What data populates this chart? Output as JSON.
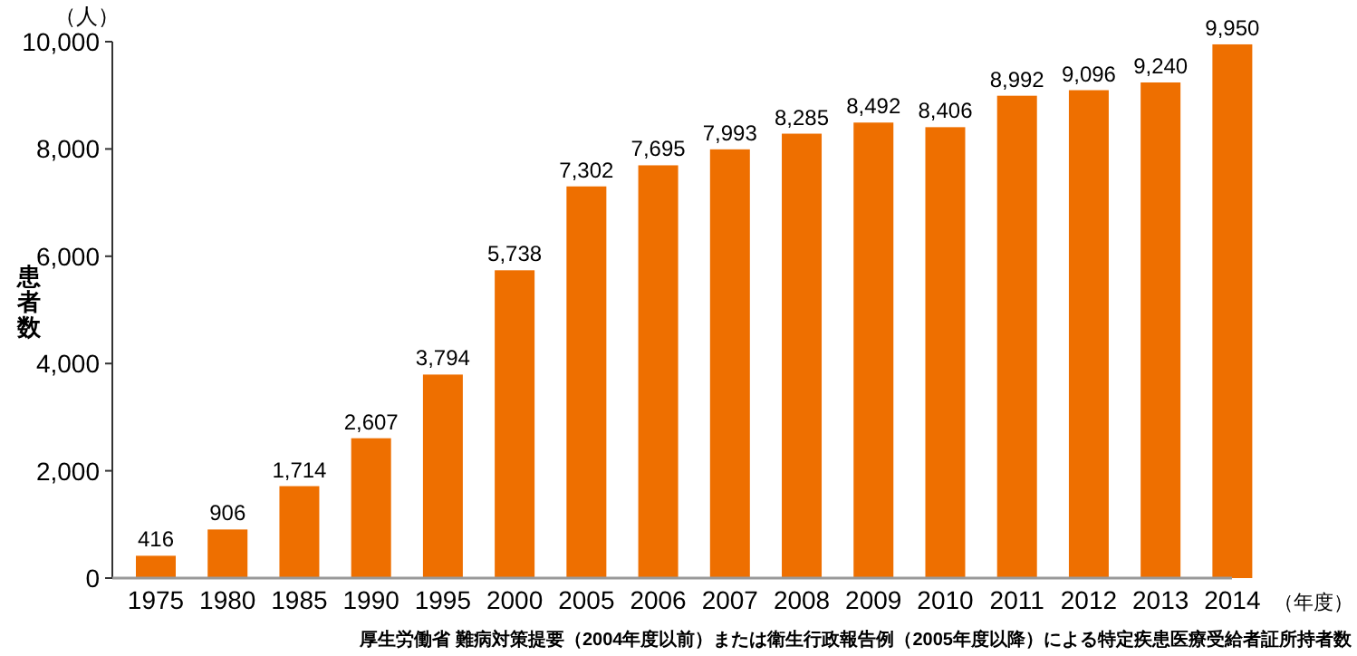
{
  "chart_data": {
    "type": "bar",
    "categories": [
      "1975",
      "1980",
      "1985",
      "1990",
      "1995",
      "2000",
      "2005",
      "2006",
      "2007",
      "2008",
      "2009",
      "2010",
      "2011",
      "2012",
      "2013",
      "2014"
    ],
    "values": [
      416,
      906,
      1714,
      2607,
      3794,
      5738,
      7302,
      7695,
      7993,
      8285,
      8492,
      8406,
      8992,
      9096,
      9240,
      9950
    ],
    "value_labels": [
      "416",
      "906",
      "1,714",
      "2,607",
      "3,794",
      "5,738",
      "7,302",
      "7,695",
      "7,993",
      "8,285",
      "8,492",
      "8,406",
      "8,992",
      "9,096",
      "9,240",
      "9,950"
    ],
    "color": "#ee6f00",
    "ylim": [
      0,
      10000
    ],
    "yticks": [
      0,
      {
        "value": 2000,
        "label": "2,000"
      },
      {
        "value": 4000,
        "label": "4,000"
      },
      {
        "value": 6000,
        "label": "6,000"
      },
      {
        "value": 8000,
        "label": "8,000"
      },
      {
        "value": 10000,
        "label": "10,000"
      }
    ],
    "xlabel": "（年度）",
    "ylabel": "患者数",
    "annotations": [
      "（人）",
      "厚生労働省 難病対策提要（2004年度以前）または衛生行政報告例（2005年度以降）による特定疾患医療受給者証所持者数"
    ]
  }
}
